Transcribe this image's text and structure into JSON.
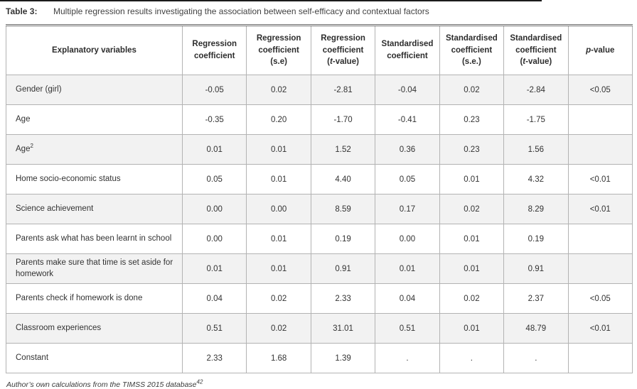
{
  "page": {
    "title_label": "Table 3:",
    "title_caption": "Multiple regression results investigating the association between self-efficacy and contextual factors",
    "source_note": "Author’s own calculations from the TIMSS 2015 database",
    "source_note_sup": "42"
  },
  "colors": {
    "stripe": "#f2f2f2",
    "grid_border": "#b3b3b3",
    "top_rule": "#6f6f6f",
    "text": "#333333"
  },
  "table": {
    "headers": [
      "Explanatory variables",
      "Regression\ncoefficient",
      "Regression\ncoefficient\n(s.e)",
      "Regression\ncoefficient\n(t-value)",
      "Standardised\ncoefficient",
      "Standardised\ncoefficient\n(s.e.)",
      "Standardised\ncoefficient\n(t-value)",
      "p-value"
    ],
    "rows": [
      {
        "label": "Gender (girl)",
        "values": [
          "-0.05",
          "0.02",
          "-2.81",
          "-0.04",
          "0.02",
          "-2.84",
          "<0.05"
        ]
      },
      {
        "label": "Age",
        "values": [
          "-0.35",
          "0.20",
          "-1.70",
          "-0.41",
          "0.23",
          "-1.75",
          ""
        ]
      },
      {
        "label": "Age",
        "label_sup": "2",
        "values": [
          "0.01",
          "0.01",
          "1.52",
          "0.36",
          "0.23",
          "1.56",
          ""
        ]
      },
      {
        "label": "Home socio-economic status",
        "values": [
          "0.05",
          "0.01",
          "4.40",
          "0.05",
          "0.01",
          "4.32",
          "<0.01"
        ]
      },
      {
        "label": "Science achievement",
        "values": [
          "0.00",
          "0.00",
          "8.59",
          "0.17",
          "0.02",
          "8.29",
          "<0.01"
        ]
      },
      {
        "label": "Parents ask what has been learnt in school",
        "values": [
          "0.00",
          "0.01",
          "0.19",
          "0.00",
          "0.01",
          "0.19",
          ""
        ]
      },
      {
        "label": "Parents make sure that time is set aside for homework",
        "values": [
          "0.01",
          "0.01",
          "0.91",
          "0.01",
          "0.01",
          "0.91",
          ""
        ]
      },
      {
        "label": "Parents check if homework is done",
        "values": [
          "0.04",
          "0.02",
          "2.33",
          "0.04",
          "0.02",
          "2.37",
          "<0.05"
        ]
      },
      {
        "label": "Classroom experiences",
        "values": [
          "0.51",
          "0.02",
          "31.01",
          "0.51",
          "0.01",
          "48.79",
          "<0.01"
        ]
      },
      {
        "label": "Constant",
        "values": [
          "2.33",
          "1.68",
          "1.39",
          ".",
          ".",
          ".",
          ""
        ]
      }
    ]
  }
}
